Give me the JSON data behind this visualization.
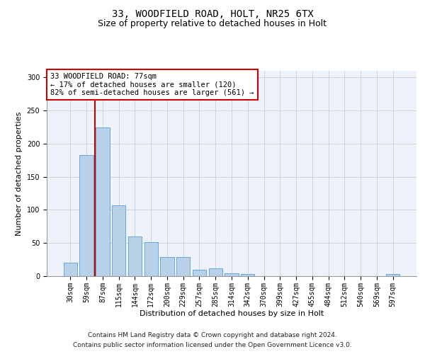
{
  "title_line1": "33, WOODFIELD ROAD, HOLT, NR25 6TX",
  "title_line2": "Size of property relative to detached houses in Holt",
  "xlabel": "Distribution of detached houses by size in Holt",
  "ylabel": "Number of detached properties",
  "footnote_line1": "Contains HM Land Registry data © Crown copyright and database right 2024.",
  "footnote_line2": "Contains public sector information licensed under the Open Government Licence v3.0.",
  "annotation_title": "33 WOODFIELD ROAD: 77sqm",
  "annotation_line2": "← 17% of detached houses are smaller (120)",
  "annotation_line3": "82% of semi-detached houses are larger (561) →",
  "bin_labels": [
    "30sqm",
    "59sqm",
    "87sqm",
    "115sqm",
    "144sqm",
    "172sqm",
    "200sqm",
    "229sqm",
    "257sqm",
    "285sqm",
    "314sqm",
    "342sqm",
    "370sqm",
    "399sqm",
    "427sqm",
    "455sqm",
    "484sqm",
    "512sqm",
    "540sqm",
    "569sqm",
    "597sqm"
  ],
  "bar_values": [
    20,
    183,
    224,
    107,
    60,
    51,
    29,
    29,
    10,
    12,
    4,
    3,
    0,
    0,
    0,
    0,
    0,
    0,
    0,
    0,
    3
  ],
  "bar_color": "#b8d0e8",
  "bar_edge_color": "#5a9fd4",
  "marker_color": "#cc0000",
  "ylim": [
    0,
    310
  ],
  "yticks": [
    0,
    50,
    100,
    150,
    200,
    250,
    300
  ],
  "bg_color": "#eef2fa",
  "grid_color": "#cccccc",
  "title_fontsize": 10,
  "subtitle_fontsize": 9,
  "axis_label_fontsize": 8,
  "tick_fontsize": 7,
  "annotation_fontsize": 7.5,
  "footnote_fontsize": 6.5
}
